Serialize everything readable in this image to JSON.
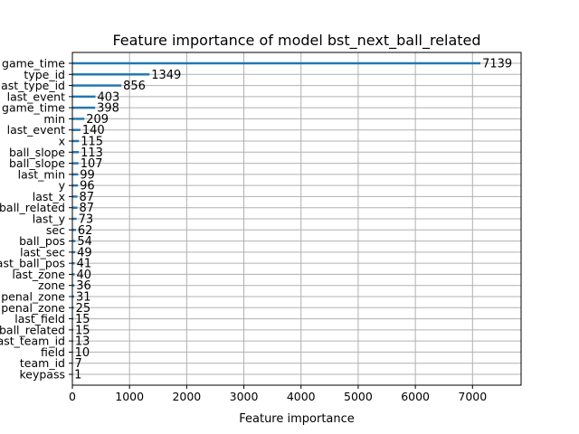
{
  "chart_data": {
    "type": "bar",
    "orientation": "horizontal",
    "title": "Feature importance of model bst_next_ball_related",
    "xlabel": "Feature importance",
    "ylabel": "",
    "xlim": [
      0,
      7850
    ],
    "xticks": [
      0,
      1000,
      2000,
      3000,
      4000,
      5000,
      6000,
      7000
    ],
    "grid": true,
    "bar_color": "#1f77b4",
    "categories": [
      "game_time",
      "type_id",
      "last_type_id",
      "last_event",
      "game_time",
      "min",
      "last_event",
      "x",
      "ball_slope",
      "ball_slope",
      "last_min",
      "y",
      "last_x",
      "ball_related",
      "last_y",
      "sec",
      "ball_pos",
      "last_sec",
      "last_ball_pos",
      "last_zone",
      "zone",
      "penal_zone",
      "penal_zone",
      "last_field",
      "ball_related",
      "last_team_id",
      "field",
      "team_id",
      "keypass"
    ],
    "values": [
      7139,
      1349,
      856,
      403,
      398,
      209,
      140,
      115,
      113,
      107,
      99,
      96,
      87,
      87,
      73,
      62,
      54,
      49,
      41,
      40,
      36,
      31,
      25,
      15,
      15,
      13,
      10,
      7,
      1
    ]
  }
}
